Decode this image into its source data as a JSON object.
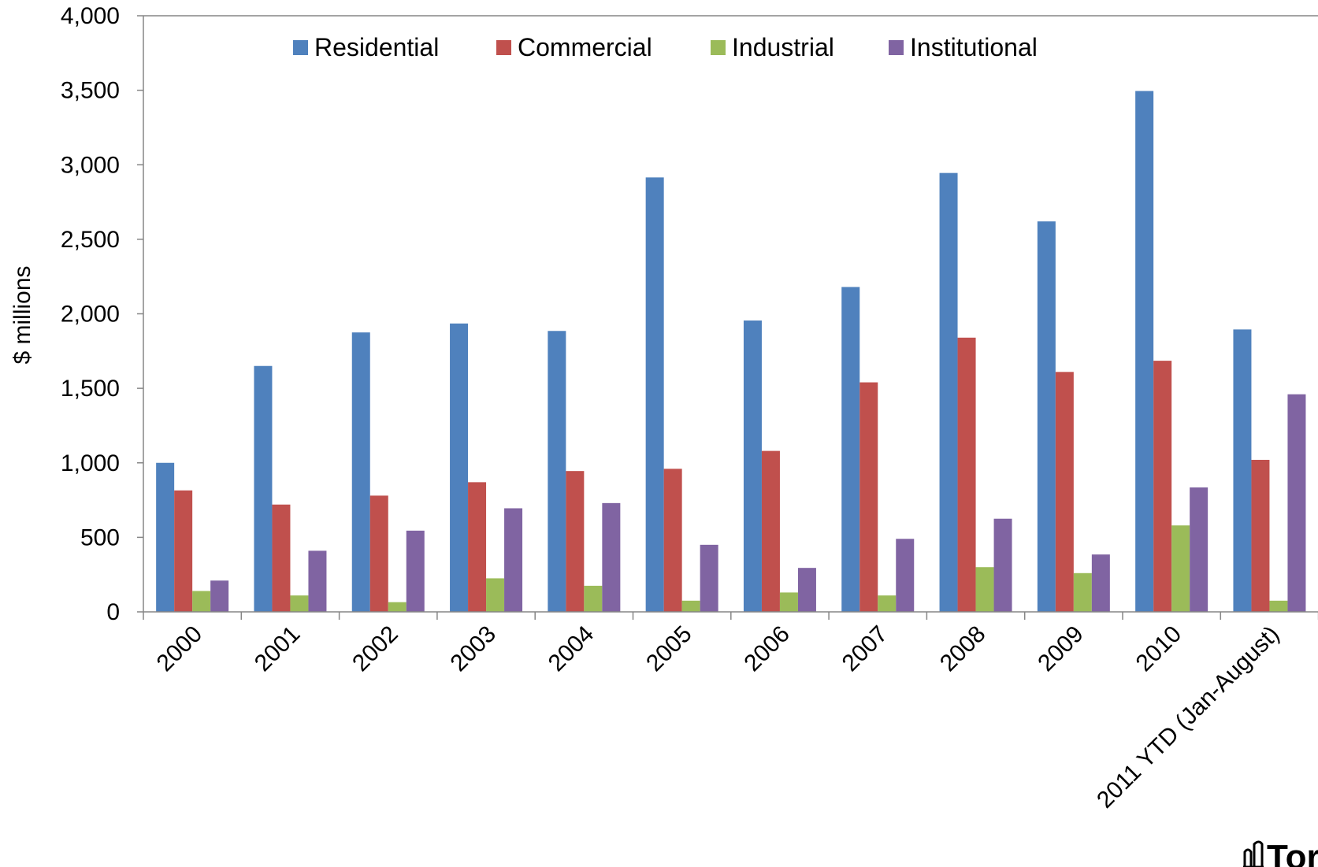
{
  "chart_data": {
    "type": "bar",
    "title": "",
    "xlabel": "",
    "ylabel": "$ millions",
    "ylim": [
      0,
      4000
    ],
    "yticks": [
      0,
      500,
      1000,
      1500,
      2000,
      2500,
      3000,
      3500,
      4000
    ],
    "ytick_labels": [
      "0",
      "500",
      "1,000",
      "1,500",
      "2,000",
      "2,500",
      "3,000",
      "3,500",
      "4,000"
    ],
    "grid": false,
    "legend_position": "top",
    "categories": [
      "2000",
      "2001",
      "2002",
      "2003",
      "2004",
      "2005",
      "2006",
      "2007",
      "2008",
      "2009",
      "2010",
      "2011 YTD (Jan-August)"
    ],
    "series": [
      {
        "name": "Residential",
        "color": "#4F81BD",
        "values": [
          1000,
          1650,
          1875,
          1935,
          1885,
          2915,
          1955,
          2180,
          2945,
          2620,
          3495,
          1895
        ]
      },
      {
        "name": "Commercial",
        "color": "#C0504D",
        "values": [
          815,
          720,
          780,
          870,
          945,
          960,
          1080,
          1540,
          1840,
          1610,
          1685,
          1020
        ]
      },
      {
        "name": "Industrial",
        "color": "#9BBB59",
        "values": [
          140,
          110,
          65,
          225,
          175,
          75,
          130,
          110,
          300,
          260,
          580,
          75
        ]
      },
      {
        "name": "Institutional",
        "color": "#8064A2",
        "values": [
          210,
          410,
          545,
          695,
          730,
          450,
          295,
          490,
          625,
          385,
          835,
          1460
        ]
      }
    ]
  },
  "logo": {
    "text": "Tor",
    "icon": "city-hall-icon"
  }
}
